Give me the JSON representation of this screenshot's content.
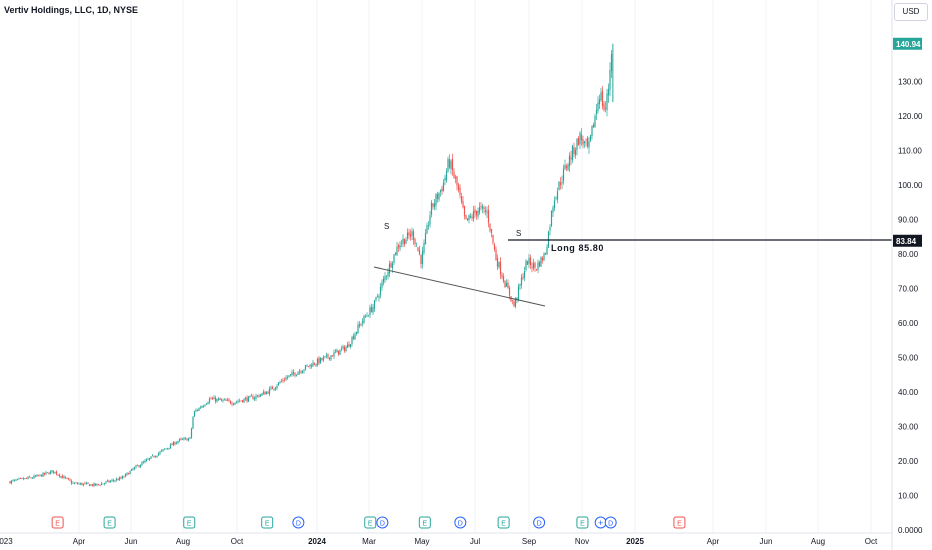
{
  "header": {
    "title": "Vertiv Holdings, LLC, 1D, NYSE",
    "currency": "USD"
  },
  "colors": {
    "up": "#26a69a",
    "down": "#ef5350",
    "last_price_bg": "#26a69a",
    "line_price_bg": "#131722",
    "earnings_green": "#26a69a",
    "earnings_red": "#ef5350",
    "dividend_blue": "#2962ff"
  },
  "price_axis": {
    "ticks": [
      "140.94",
      "130.00",
      "120.00",
      "110.00",
      "100.00",
      "90.00",
      "83.84",
      "80.00",
      "70.00",
      "60.00",
      "50.00",
      "40.00",
      "30.00",
      "20.00",
      "10.00",
      "0.0000"
    ]
  },
  "time_axis": {
    "labels": [
      "023",
      "Apr",
      "Jun",
      "Aug",
      "Oct",
      "2024",
      "Mar",
      "May",
      "Jul",
      "Sep",
      "Nov",
      "2025",
      "Apr",
      "Jun",
      "Aug",
      "Oct"
    ]
  },
  "chart_data": {
    "type": "candlestick",
    "symbol": "Vertiv Holdings, LLC",
    "interval": "1D",
    "exchange": "NYSE",
    "currency": "USD",
    "last_price": 140.94,
    "horizontal_line": {
      "price": 83.84,
      "label": "Long 85.80"
    },
    "trendline": {
      "from": {
        "date": "2024-03",
        "price": 76
      },
      "to": {
        "date": "2024-09",
        "price": 65
      }
    },
    "markers": [
      {
        "text": "S",
        "date": "2024-03",
        "price": 87
      },
      {
        "text": "S",
        "date": "2024-08",
        "price": 84
      }
    ],
    "ylim": [
      0,
      145
    ],
    "close_path": [
      [
        "2023-01-01",
        14.0
      ],
      [
        "2023-02-01",
        15.5
      ],
      [
        "2023-02-20",
        17.0
      ],
      [
        "2023-03-15",
        13.5
      ],
      [
        "2023-04-10",
        13.0
      ],
      [
        "2023-05-10",
        15.0
      ],
      [
        "2023-05-25",
        18.0
      ],
      [
        "2023-06-20",
        22.0
      ],
      [
        "2023-07-15",
        26.0
      ],
      [
        "2023-07-28",
        26.5
      ],
      [
        "2023-08-01",
        34.0
      ],
      [
        "2023-08-20",
        38.0
      ],
      [
        "2023-09-15",
        37.0
      ],
      [
        "2023-10-10",
        38.5
      ],
      [
        "2023-10-25",
        40.0
      ],
      [
        "2023-11-15",
        44.0
      ],
      [
        "2023-12-15",
        48.0
      ],
      [
        "2024-01-02",
        50.0
      ],
      [
        "2024-01-25",
        53.0
      ],
      [
        "2024-02-10",
        60.0
      ],
      [
        "2024-02-25",
        65.0
      ],
      [
        "2024-03-10",
        74.0
      ],
      [
        "2024-03-25",
        83.0
      ],
      [
        "2024-04-10",
        86.0
      ],
      [
        "2024-04-20",
        78.0
      ],
      [
        "2024-05-01",
        93.0
      ],
      [
        "2024-05-15",
        100.0
      ],
      [
        "2024-05-22",
        107.0
      ],
      [
        "2024-06-01",
        99.0
      ],
      [
        "2024-06-10",
        89.0
      ],
      [
        "2024-06-25",
        93.0
      ],
      [
        "2024-07-05",
        92.0
      ],
      [
        "2024-07-15",
        79.0
      ],
      [
        "2024-07-25",
        72.0
      ],
      [
        "2024-08-05",
        65.0
      ],
      [
        "2024-08-20",
        78.0
      ],
      [
        "2024-08-30",
        76.0
      ],
      [
        "2024-09-10",
        80.0
      ],
      [
        "2024-09-20",
        96.0
      ],
      [
        "2024-10-05",
        106.0
      ],
      [
        "2024-10-20",
        114.0
      ],
      [
        "2024-10-30",
        110.0
      ],
      [
        "2024-11-05",
        118.0
      ],
      [
        "2024-11-12",
        127.0
      ],
      [
        "2024-11-18",
        121.0
      ],
      [
        "2024-11-22",
        128.0
      ],
      [
        "2024-11-26",
        140.94
      ]
    ],
    "events": [
      {
        "type": "earnings",
        "date": "2023-02-25",
        "color": "red"
      },
      {
        "type": "earnings",
        "date": "2023-04-26",
        "color": "green"
      },
      {
        "type": "earnings",
        "date": "2023-07-27",
        "color": "green"
      },
      {
        "type": "earnings",
        "date": "2023-10-25",
        "color": "green"
      },
      {
        "type": "dividend",
        "date": "2023-11-30"
      },
      {
        "type": "earnings",
        "date": "2024-02-21",
        "color": "green"
      },
      {
        "type": "dividend",
        "date": "2024-03-06"
      },
      {
        "type": "earnings",
        "date": "2024-04-24",
        "color": "green"
      },
      {
        "type": "dividend",
        "date": "2024-06-04"
      },
      {
        "type": "earnings",
        "date": "2024-07-24",
        "color": "green"
      },
      {
        "type": "dividend",
        "date": "2024-09-03"
      },
      {
        "type": "earnings",
        "date": "2024-10-23",
        "color": "green"
      },
      {
        "type": "split_dividend",
        "date": "2024-11-20"
      },
      {
        "type": "earnings",
        "date": "2025-02-12",
        "color": "red"
      }
    ]
  }
}
